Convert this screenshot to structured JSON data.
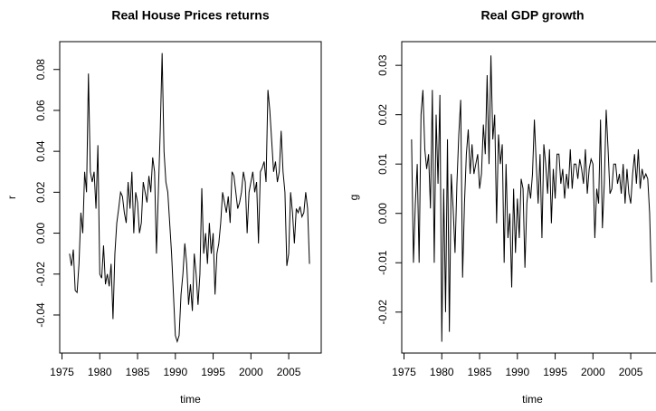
{
  "chart_data": [
    {
      "type": "line",
      "title": "Real House Prices returns",
      "x_label": "time",
      "y_label": "r",
      "color": "#000000",
      "x": [
        1976,
        1976.25,
        1976.5,
        1976.75,
        1977,
        1977.25,
        1977.5,
        1977.75,
        1978,
        1978.25,
        1978.5,
        1978.75,
        1979,
        1979.25,
        1979.5,
        1979.75,
        1980,
        1980.25,
        1980.5,
        1980.75,
        1981,
        1981.25,
        1981.5,
        1981.75,
        1982,
        1982.25,
        1982.5,
        1982.75,
        1983,
        1983.25,
        1983.5,
        1983.75,
        1984,
        1984.25,
        1984.5,
        1984.75,
        1985,
        1985.25,
        1985.5,
        1985.75,
        1986,
        1986.25,
        1986.5,
        1986.75,
        1987,
        1987.25,
        1987.5,
        1987.75,
        1988,
        1988.25,
        1988.5,
        1988.75,
        1989,
        1989.25,
        1989.5,
        1989.75,
        1990,
        1990.25,
        1990.5,
        1990.75,
        1991,
        1991.25,
        1991.5,
        1991.75,
        1992,
        1992.25,
        1992.5,
        1992.75,
        1993,
        1993.25,
        1993.5,
        1993.75,
        1994,
        1994.25,
        1994.5,
        1994.75,
        1995,
        1995.25,
        1995.5,
        1995.75,
        1996,
        1996.25,
        1996.5,
        1996.75,
        1997,
        1997.25,
        1997.5,
        1997.75,
        1998,
        1998.25,
        1998.5,
        1998.75,
        1999,
        1999.25,
        1999.5,
        1999.75,
        2000,
        2000.25,
        2000.5,
        2000.75,
        2001,
        2001.25,
        2001.5,
        2001.75,
        2002,
        2002.25,
        2002.5,
        2002.75,
        2003,
        2003.25,
        2003.5,
        2003.75,
        2004,
        2004.25,
        2004.5,
        2004.75,
        2005,
        2005.25,
        2005.5,
        2005.75,
        2006,
        2006.25,
        2006.5,
        2006.75,
        2007,
        2007.25,
        2007.5,
        2007.75
      ],
      "values": [
        -0.01,
        -0.016,
        -0.008,
        -0.028,
        -0.029,
        -0.015,
        0.01,
        0.0,
        0.03,
        0.02,
        0.078,
        0.03,
        0.025,
        0.03,
        0.012,
        0.043,
        -0.02,
        -0.022,
        -0.006,
        -0.025,
        -0.02,
        -0.026,
        -0.015,
        -0.042,
        -0.01,
        0.005,
        0.012,
        0.02,
        0.018,
        0.01,
        0.005,
        0.025,
        0.012,
        0.03,
        0.0,
        0.02,
        0.015,
        0.0,
        0.005,
        0.025,
        0.02,
        0.015,
        0.028,
        0.02,
        0.037,
        0.03,
        -0.01,
        0.02,
        0.05,
        0.088,
        0.04,
        0.025,
        0.02,
        0.005,
        -0.01,
        -0.03,
        -0.05,
        -0.053,
        -0.05,
        -0.03,
        -0.02,
        -0.005,
        -0.015,
        -0.035,
        -0.025,
        -0.038,
        -0.01,
        -0.02,
        -0.035,
        -0.02,
        0.022,
        -0.01,
        0.0,
        -0.015,
        0.005,
        -0.01,
        0.0,
        -0.03,
        -0.01,
        -0.005,
        0.005,
        0.02,
        0.015,
        0.01,
        0.018,
        0.005,
        0.03,
        0.028,
        0.02,
        0.012,
        0.015,
        0.02,
        0.03,
        0.025,
        0.0,
        0.02,
        0.025,
        0.03,
        0.02,
        0.025,
        -0.005,
        0.03,
        0.032,
        0.035,
        0.025,
        0.07,
        0.06,
        0.045,
        0.03,
        0.035,
        0.025,
        0.03,
        0.05,
        0.03,
        0.02,
        -0.016,
        -0.01,
        0.02,
        0.01,
        -0.005,
        0.012,
        0.01,
        0.013,
        0.008,
        0.01,
        0.02,
        0.012,
        -0.015
      ],
      "xlim": [
        1974.7,
        2009.3
      ],
      "xticks": [
        1975,
        1980,
        1985,
        1990,
        1995,
        2000,
        2005
      ],
      "ylim": [
        -0.0586,
        0.0936
      ],
      "yticks": [
        -0.04,
        -0.02,
        {
          "value": 0,
          "label": "0.00"
        },
        0.02,
        0.04,
        0.06,
        0.08
      ]
    },
    {
      "type": "line",
      "title": "Real GDP growth",
      "x_label": "time",
      "y_label": "g",
      "color": "#000000",
      "x": [
        1976,
        1976.25,
        1976.5,
        1976.75,
        1977,
        1977.25,
        1977.5,
        1977.75,
        1978,
        1978.25,
        1978.5,
        1978.75,
        1979,
        1979.25,
        1979.5,
        1979.75,
        1980,
        1980.25,
        1980.5,
        1980.75,
        1981,
        1981.25,
        1981.5,
        1981.75,
        1982,
        1982.25,
        1982.5,
        1982.75,
        1983,
        1983.25,
        1983.5,
        1983.75,
        1984,
        1984.25,
        1984.5,
        1984.75,
        1985,
        1985.25,
        1985.5,
        1985.75,
        1986,
        1986.25,
        1986.5,
        1986.75,
        1987,
        1987.25,
        1987.5,
        1987.75,
        1988,
        1988.25,
        1988.5,
        1988.75,
        1989,
        1989.25,
        1989.5,
        1989.75,
        1990,
        1990.25,
        1990.5,
        1990.75,
        1991,
        1991.25,
        1991.5,
        1991.75,
        1992,
        1992.25,
        1992.5,
        1992.75,
        1993,
        1993.25,
        1993.5,
        1993.75,
        1994,
        1994.25,
        1994.5,
        1994.75,
        1995,
        1995.25,
        1995.5,
        1995.75,
        1996,
        1996.25,
        1996.5,
        1996.75,
        1997,
        1997.25,
        1997.5,
        1997.75,
        1998,
        1998.25,
        1998.5,
        1998.75,
        1999,
        1999.25,
        1999.5,
        1999.75,
        2000,
        2000.25,
        2000.5,
        2000.75,
        2001,
        2001.25,
        2001.5,
        2001.75,
        2002,
        2002.25,
        2002.5,
        2002.75,
        2003,
        2003.25,
        2003.5,
        2003.75,
        2004,
        2004.25,
        2004.5,
        2004.75,
        2005,
        2005.25,
        2005.5,
        2005.75,
        2006,
        2006.25,
        2006.5,
        2006.75,
        2007,
        2007.25,
        2007.5,
        2007.75
      ],
      "values": [
        0.015,
        -0.01,
        0.002,
        0.01,
        -0.01,
        0.02,
        0.025,
        0.013,
        0.009,
        0.012,
        0.001,
        0.025,
        -0.01,
        0.02,
        0.006,
        0.024,
        -0.026,
        0.005,
        -0.02,
        0.015,
        -0.024,
        0.008,
        0.001,
        -0.008,
        0.006,
        0.016,
        0.023,
        -0.013,
        0.002,
        0.012,
        0.017,
        0.008,
        0.014,
        0.008,
        0.01,
        0.012,
        0.005,
        0.008,
        0.018,
        0.012,
        0.028,
        0.01,
        0.032,
        0.015,
        0.02,
        -0.002,
        0.016,
        0.01,
        0.014,
        -0.01,
        0.01,
        -0.005,
        0.0,
        -0.015,
        0.005,
        -0.008,
        0.003,
        -0.005,
        0.007,
        0.005,
        -0.011,
        0.002,
        0.006,
        0.003,
        0.008,
        0.019,
        0.01,
        0.002,
        0.012,
        -0.005,
        0.014,
        0.01,
        0.004,
        0.013,
        -0.002,
        0.009,
        0.003,
        0.012,
        0.012,
        0.006,
        0.009,
        0.003,
        0.008,
        0.005,
        0.013,
        0.005,
        0.01,
        0.01,
        0.007,
        0.011,
        0.009,
        0.006,
        0.013,
        0.004,
        0.009,
        0.011,
        0.01,
        -0.005,
        0.005,
        0.002,
        0.019,
        -0.003,
        0.006,
        0.021,
        0.013,
        0.004,
        0.005,
        0.01,
        0.01,
        0.006,
        0.008,
        0.004,
        0.01,
        0.002,
        0.009,
        0.004,
        0.002,
        0.008,
        0.012,
        0.006,
        0.013,
        0.005,
        0.009,
        0.007,
        0.008,
        0.007,
        0.0,
        -0.014
      ],
      "xlim": [
        1974.7,
        2009.3
      ],
      "xticks": [
        1975,
        1980,
        1985,
        1990,
        1995,
        2000,
        2005
      ],
      "ylim": [
        -0.0283,
        0.0348
      ],
      "yticks": [
        -0.02,
        -0.01,
        {
          "value": 0,
          "label": "0.00"
        },
        0.01,
        0.02,
        0.03
      ]
    }
  ]
}
